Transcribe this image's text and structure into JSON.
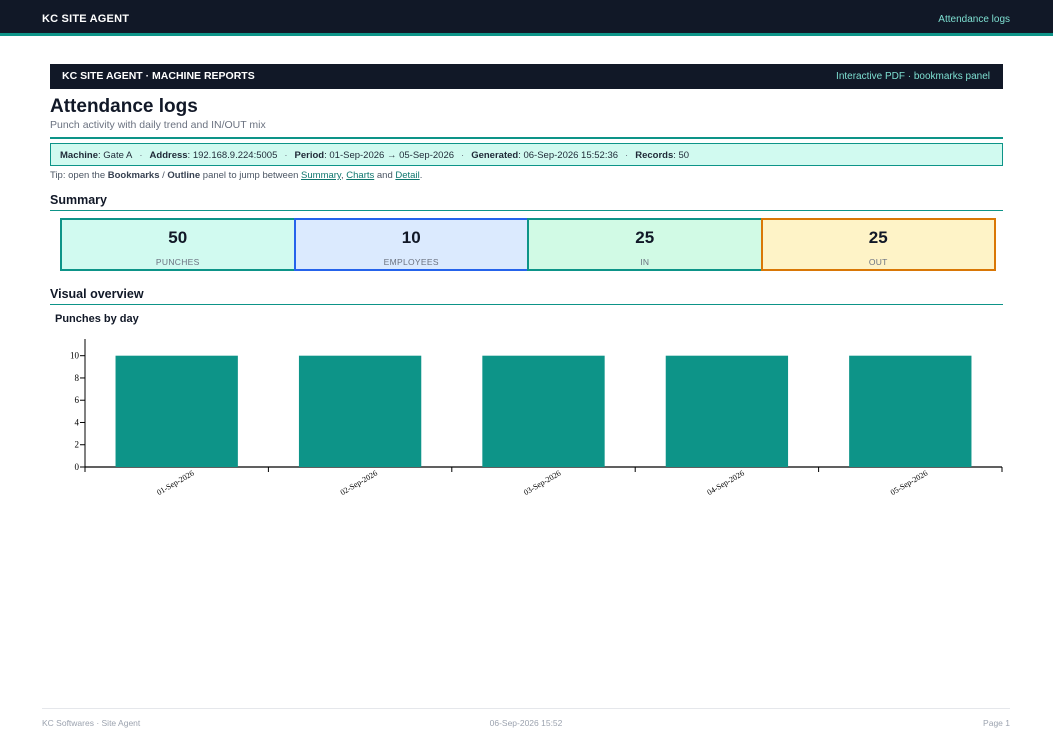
{
  "topbar": {
    "brand": "KC SITE AGENT",
    "page_name": "Attendance logs"
  },
  "banner": {
    "title": "KC SITE AGENT · MACHINE REPORTS",
    "note": "Interactive PDF · bookmarks panel"
  },
  "document": {
    "title": "Attendance logs",
    "subtitle": "Punch activity with daily trend and IN/OUT mix"
  },
  "meta": {
    "machine_label": "Machine",
    "machine": "Gate A",
    "address_label": "Address",
    "address": "192.168.9.224:5005",
    "period_label": "Period",
    "period": "01-Sep-2026 → 05-Sep-2026",
    "generated_label": "Generated",
    "generated": "06-Sep-2026 15:52:36",
    "records_label": "Records",
    "records": "50",
    "separator": "·"
  },
  "tip": {
    "prefix": "Tip: open the ",
    "bookmarks": "Bookmarks",
    "slash": " / ",
    "outline": "Outline",
    "middle": " panel to jump between ",
    "link_summary": "Summary",
    "comma": ", ",
    "link_charts": "Charts",
    "and": " and ",
    "link_detail": "Detail",
    "end": "."
  },
  "summary": {
    "title": "Summary",
    "kpis": [
      {
        "value": "50",
        "label": "PUNCHES",
        "bg": "#d1faf0",
        "border": "#0d9488"
      },
      {
        "value": "10",
        "label": "EMPLOYEES",
        "bg": "#dbeafe",
        "border": "#2563eb"
      },
      {
        "value": "25",
        "label": "IN",
        "bg": "#d1fae5",
        "border": "#0d9488"
      },
      {
        "value": "25",
        "label": "OUT",
        "bg": "#fef3c7",
        "border": "#d97706"
      }
    ]
  },
  "visual": {
    "title": "Visual overview"
  },
  "chart_data": {
    "type": "bar",
    "title": "Punches by day",
    "categories": [
      "01-Sep-2026",
      "02-Sep-2026",
      "03-Sep-2026",
      "04-Sep-2026",
      "05-Sep-2026"
    ],
    "values": [
      10,
      10,
      10,
      10,
      10
    ],
    "yticks": [
      0,
      2,
      4,
      6,
      8,
      10
    ],
    "ylim": [
      0,
      11.5
    ],
    "xlabel": "",
    "ylabel": "",
    "bar_color": "#0d9488",
    "grid": false
  },
  "footer": {
    "left": "KC Softwares · Site Agent",
    "center": "06-Sep-2026 15:52",
    "right": "Page 1"
  }
}
